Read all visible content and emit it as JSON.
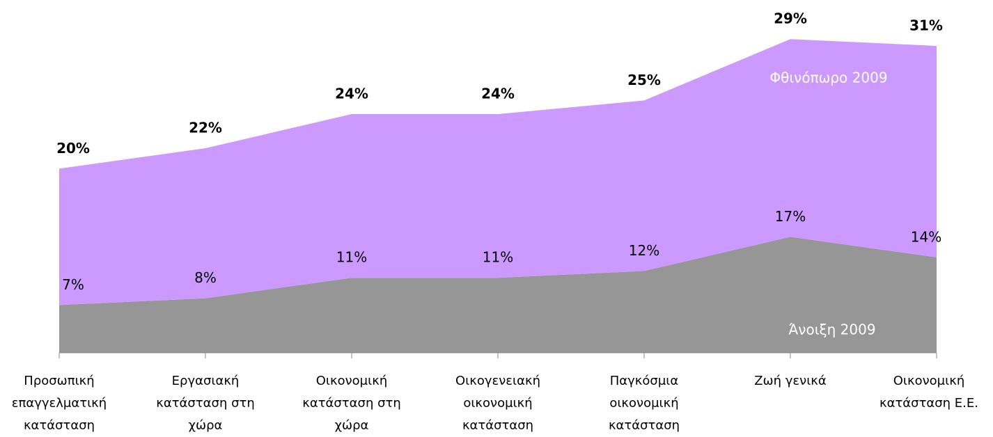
{
  "chart_data": {
    "type": "stacked_area",
    "categories": [
      "Προσωπική επαγγελματική κατάσταση",
      "Εργασιακή κατάσταση στη χώρα",
      "Οικονομική κατάσταση στη χώρα",
      "Οικογενειακή οικονομική κατάσταση",
      "Παγκόσμια οικονομική κατάσταση",
      "Ζωή γενικά",
      "Οικονομική κατάσταση Ε.Ε."
    ],
    "series": [
      {
        "name": "Άνοιξη 2009",
        "color": "#969696",
        "values": [
          7,
          8,
          11,
          11,
          12,
          17,
          14
        ],
        "value_labels": [
          "7%",
          "8%",
          "11%",
          "11%",
          "12%",
          "17%",
          "14%"
        ]
      },
      {
        "name": "Φθινόπωρο 2009",
        "color": "#cc99ff",
        "values": [
          20,
          22,
          24,
          24,
          25,
          29,
          31
        ],
        "value_labels": [
          "20%",
          "22%",
          "24%",
          "24%",
          "25%",
          "29%",
          "31%"
        ]
      }
    ],
    "ylim": [
      0,
      50
    ]
  }
}
